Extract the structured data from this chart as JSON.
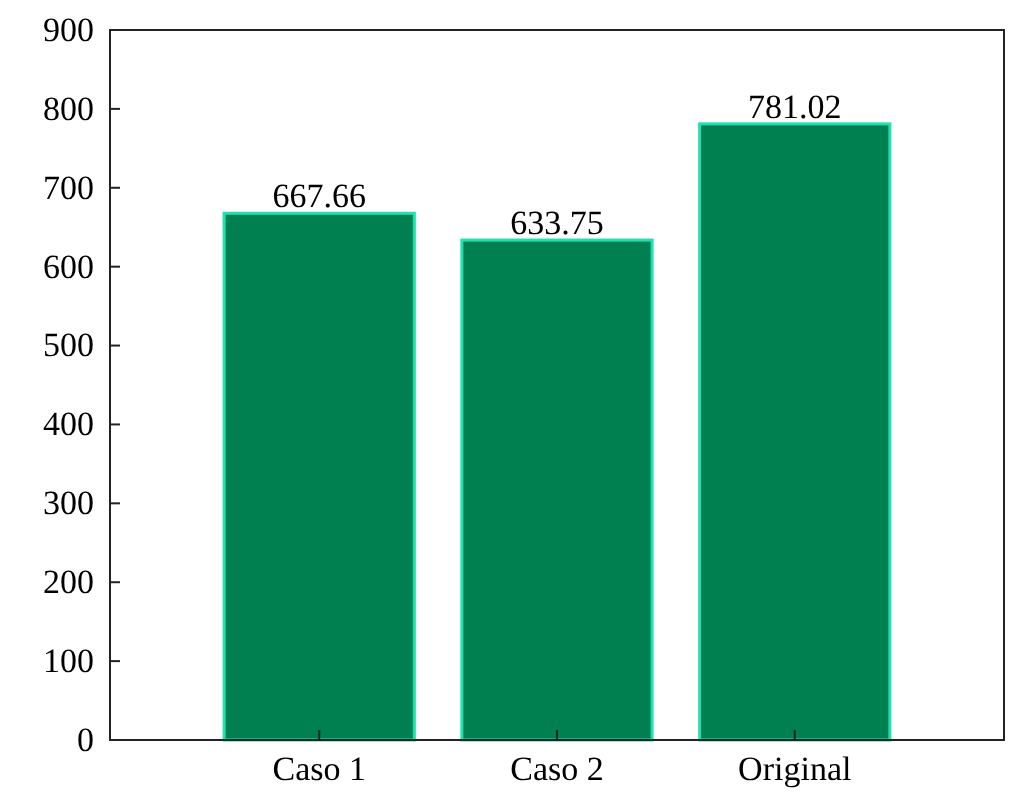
{
  "chart_data": {
    "type": "bar",
    "categories": [
      "Caso 1",
      "Caso 2",
      "Original"
    ],
    "values": [
      667.66,
      633.75,
      781.02
    ],
    "color": "#008050",
    "ylim": [
      0,
      900
    ],
    "yticks": [
      0,
      100,
      200,
      300,
      400,
      500,
      600,
      700,
      800,
      900
    ],
    "grid": false,
    "data_labels": true
  }
}
